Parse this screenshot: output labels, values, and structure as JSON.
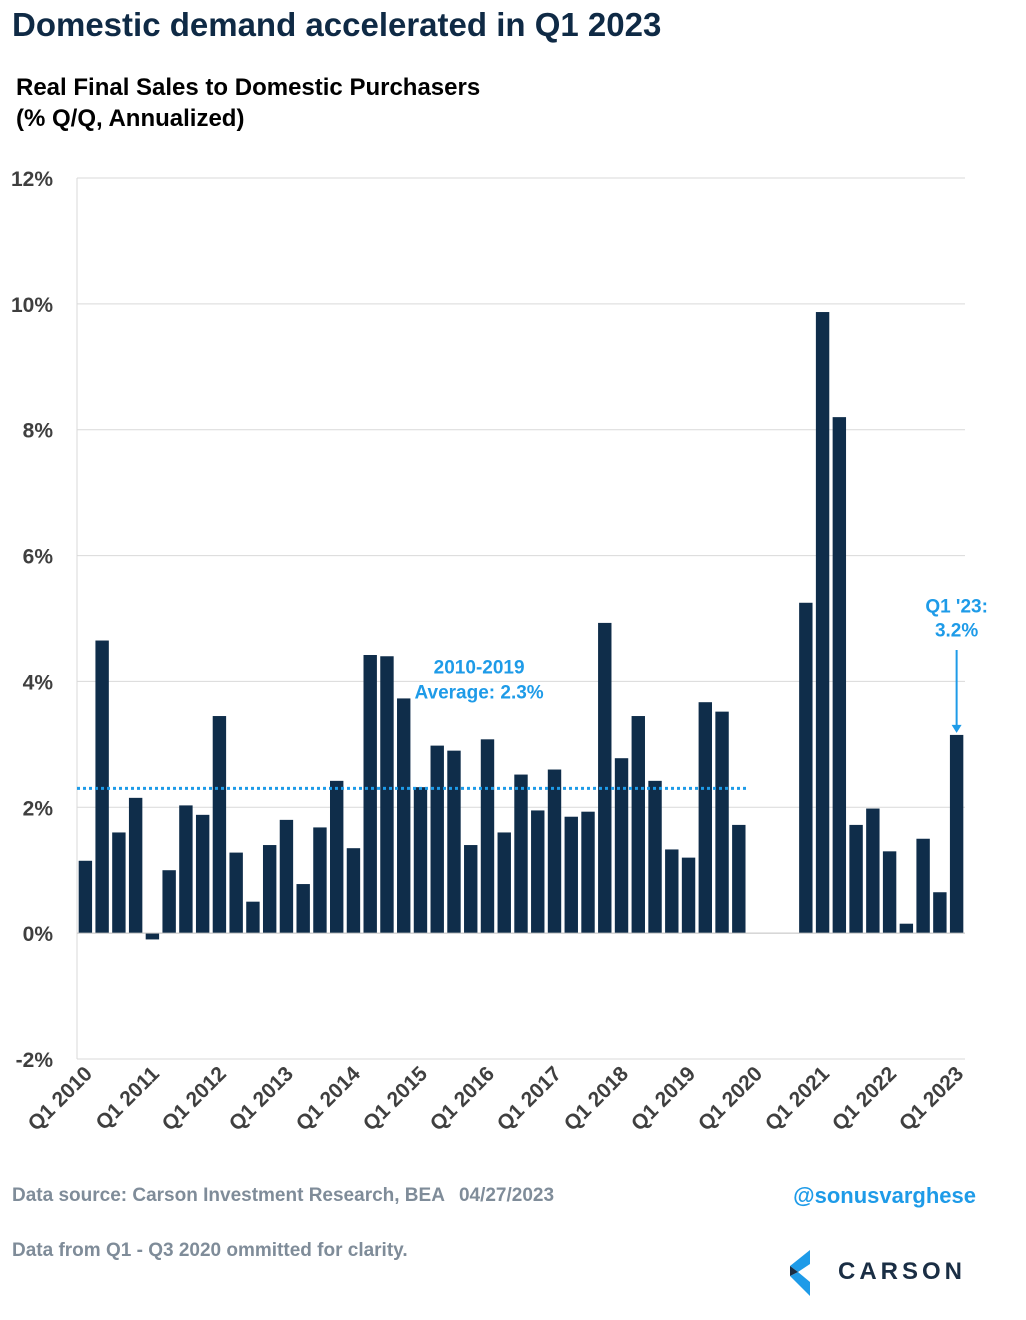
{
  "header": {
    "title": "Domestic demand accelerated in Q1 2023",
    "subtitle_line1": "Real Final Sales to Domestic Purchasers",
    "subtitle_line2": "(% Q/Q, Annualized)"
  },
  "chart_data": {
    "type": "bar",
    "title": "Real Final Sales to Domestic Purchasers",
    "ylabel": "% Q/Q, Annualized",
    "ylim": [
      -2,
      12
    ],
    "yticks": [
      -2,
      0,
      2,
      4,
      6,
      8,
      10,
      12
    ],
    "ytick_labels": [
      "-2%",
      "0%",
      "2%",
      "4%",
      "6%",
      "8%",
      "10%",
      "12%"
    ],
    "grid": true,
    "categories": [
      "Q1 2010",
      "Q2 2010",
      "Q3 2010",
      "Q4 2010",
      "Q1 2011",
      "Q2 2011",
      "Q3 2011",
      "Q4 2011",
      "Q1 2012",
      "Q2 2012",
      "Q3 2012",
      "Q4 2012",
      "Q1 2013",
      "Q2 2013",
      "Q3 2013",
      "Q4 2013",
      "Q1 2014",
      "Q2 2014",
      "Q3 2014",
      "Q4 2014",
      "Q1 2015",
      "Q2 2015",
      "Q3 2015",
      "Q4 2015",
      "Q1 2016",
      "Q2 2016",
      "Q3 2016",
      "Q4 2016",
      "Q1 2017",
      "Q2 2017",
      "Q3 2017",
      "Q4 2017",
      "Q1 2018",
      "Q2 2018",
      "Q3 2018",
      "Q4 2018",
      "Q1 2019",
      "Q2 2019",
      "Q3 2019",
      "Q4 2019",
      "Q1 2020",
      "Q2 2020",
      "Q3 2020",
      "Q4 2020",
      "Q1 2021",
      "Q2 2021",
      "Q3 2021",
      "Q4 2021",
      "Q1 2022",
      "Q2 2022",
      "Q3 2022",
      "Q4 2022",
      "Q1 2023"
    ],
    "values": [
      1.15,
      4.65,
      1.6,
      2.15,
      -0.1,
      1.0,
      2.03,
      1.88,
      3.45,
      1.28,
      0.5,
      1.4,
      1.8,
      0.78,
      1.68,
      2.42,
      1.35,
      4.42,
      4.4,
      3.73,
      2.32,
      2.98,
      2.9,
      1.4,
      3.08,
      1.6,
      2.52,
      1.95,
      2.6,
      1.85,
      1.93,
      4.93,
      2.78,
      3.45,
      2.42,
      1.33,
      1.2,
      3.67,
      3.52,
      1.72,
      null,
      null,
      null,
      5.25,
      9.87,
      8.2,
      1.72,
      1.98,
      1.3,
      0.15,
      1.5,
      0.65,
      3.15
    ],
    "xtick_labels": [
      "Q1 2010",
      "Q1 2011",
      "Q1 2012",
      "Q1 2013",
      "Q1 2014",
      "Q1 2015",
      "Q1 2016",
      "Q1 2017",
      "Q1 2018",
      "Q1 2019",
      "Q1 2020",
      "Q1 2021",
      "Q1 2022",
      "Q1 2023"
    ],
    "average": {
      "value": 2.3,
      "line1": "2010-2019",
      "line2": "Average: 2.3%"
    },
    "callout": {
      "line1": "Q1 '23:",
      "line2": "3.2%"
    }
  },
  "footer": {
    "source": "Data source: Carson Investment Research, BEA",
    "date": "04/27/2023",
    "note": "Data from Q1 - Q3 2020 ommitted for clarity.",
    "handle": "@sonusvarghese",
    "logo_text": "CARSON"
  },
  "colors": {
    "bar": "#0f2d4a",
    "accent": "#1e9be8",
    "grid": "#d9d9d9",
    "text_gray": "#7f8c99"
  }
}
